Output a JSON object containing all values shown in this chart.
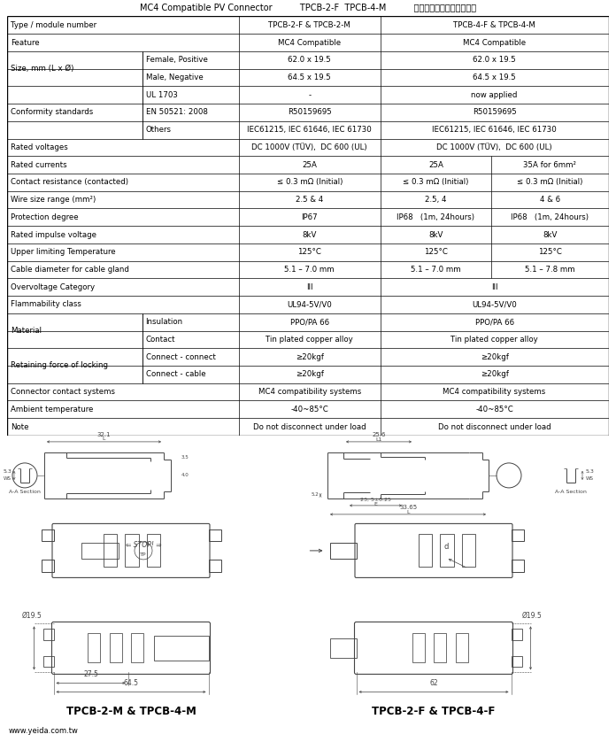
{
  "title": "MC4 Compatible PV Connector          TPCB-2-F  TPCB-4-M          太陽能光伏電纜專用連接器",
  "website": "www.yeida.com.tw",
  "bg_color": "#ffffff",
  "lc": "#000000",
  "tc": "#000000",
  "fs": 6.2,
  "col_bounds": [
    0.0,
    0.225,
    0.385,
    0.62,
    0.805,
    1.0
  ],
  "row_defs": [
    {
      "label": "Type / module number",
      "sub": "",
      "c2": "TPCB-2-F & TPCB-2-M",
      "c3": "TPCB-4-F & TPCB-4-M",
      "c4": "",
      "c3s": true
    },
    {
      "label": "Feature",
      "sub": "",
      "c2": "MC4 Compatible",
      "c3": "MC4 Compatible",
      "c4": "",
      "c3s": true
    },
    {
      "label": "Size, mm (L x Ø)",
      "sub": "Female, Positive",
      "c2": "62.0 x 19.5",
      "c3": "62.0 x 19.5",
      "c4": "",
      "c3s": true
    },
    {
      "label": "",
      "sub": "Male, Negative",
      "c2": "64.5 x 19.5",
      "c3": "64.5 x 19.5",
      "c4": "",
      "c3s": true
    },
    {
      "label": "Conformity standards",
      "sub": "UL 1703",
      "c2": "-",
      "c3": "now applied",
      "c4": "",
      "c3s": true
    },
    {
      "label": "",
      "sub": "EN 50521: 2008",
      "c2": "R50159695",
      "c3": "R50159695",
      "c4": "",
      "c3s": true
    },
    {
      "label": "",
      "sub": "Others",
      "c2": "IEC61215, IEC 61646, IEC 61730",
      "c3": "IEC61215, IEC 61646, IEC 61730",
      "c4": "",
      "c3s": true
    },
    {
      "label": "Rated voltages",
      "sub": "",
      "c2": "DC 1000V (TÜV),  DC 600 (UL)",
      "c3": "DC 1000V (TÜV),  DC 600 (UL)",
      "c4": "",
      "c3s": true
    },
    {
      "label": "Rated currents",
      "sub": "",
      "c2": "25A",
      "c3": "25A",
      "c4": "35A for 6mm²",
      "c3s": false
    },
    {
      "label": "Contact resistance (contacted)",
      "sub": "",
      "c2": "≤ 0.3 mΩ (Initial)",
      "c3": "≤ 0.3 mΩ (Initial)",
      "c4": "≤ 0.3 mΩ (Initial)",
      "c3s": false
    },
    {
      "label": "Wire size range (mm²)",
      "sub": "",
      "c2": "2.5 & 4",
      "c3": "2.5, 4",
      "c4": "4 & 6",
      "c3s": false
    },
    {
      "label": "Protection degree",
      "sub": "",
      "c2": "IP67",
      "c3": "IP68   (1m, 24hours)",
      "c4": "IP68   (1m, 24hours)",
      "c3s": false
    },
    {
      "label": "Rated impulse voltage",
      "sub": "",
      "c2": "8kV",
      "c3": "8kV",
      "c4": "8kV",
      "c3s": false
    },
    {
      "label": "Upper limiting Temperature",
      "sub": "",
      "c2": "125°C",
      "c3": "125°C",
      "c4": "125°C",
      "c3s": false
    },
    {
      "label": "Cable diameter for cable gland",
      "sub": "",
      "c2": "5.1 – 7.0 mm",
      "c3": "5.1 – 7.0 mm",
      "c4": "5.1 – 7.8 mm",
      "c3s": false
    },
    {
      "label": "Overvoltage Category",
      "sub": "",
      "c2": "III",
      "c3": "III",
      "c4": "",
      "c3s": true
    },
    {
      "label": "Flammability class",
      "sub": "",
      "c2": "UL94-5V/V0",
      "c3": "UL94-5V/V0",
      "c4": "",
      "c3s": true
    },
    {
      "label": "Material",
      "sub": "Insulation",
      "c2": "PPO/PA 66",
      "c3": "PPO/PA 66",
      "c4": "",
      "c3s": true
    },
    {
      "label": "",
      "sub": "Contact",
      "c2": "Tin plated copper alloy",
      "c3": "Tin plated copper alloy",
      "c4": "",
      "c3s": true
    },
    {
      "label": "Retaining force of locking",
      "sub": "Connect - connect",
      "c2": "≥20kgf",
      "c3": "≥20kgf",
      "c4": "",
      "c3s": true
    },
    {
      "label": "",
      "sub": "Connect - cable",
      "c2": "≥20kgf",
      "c3": "≥20kgf",
      "c4": "",
      "c3s": true
    },
    {
      "label": "Connector contact systems",
      "sub": "",
      "c2": "MC4 compatibility systems",
      "c3": "MC4 compatibility systems",
      "c4": "",
      "c3s": true
    },
    {
      "label": "Ambient temperature",
      "sub": "",
      "c2": "-40~85°C",
      "c3": "-40~85°C",
      "c4": "",
      "c3s": true
    },
    {
      "label": "Note",
      "sub": "",
      "c2": "Do not disconnect under load",
      "c3": "Do not disconnect under load",
      "c4": "",
      "c3s": true
    }
  ]
}
